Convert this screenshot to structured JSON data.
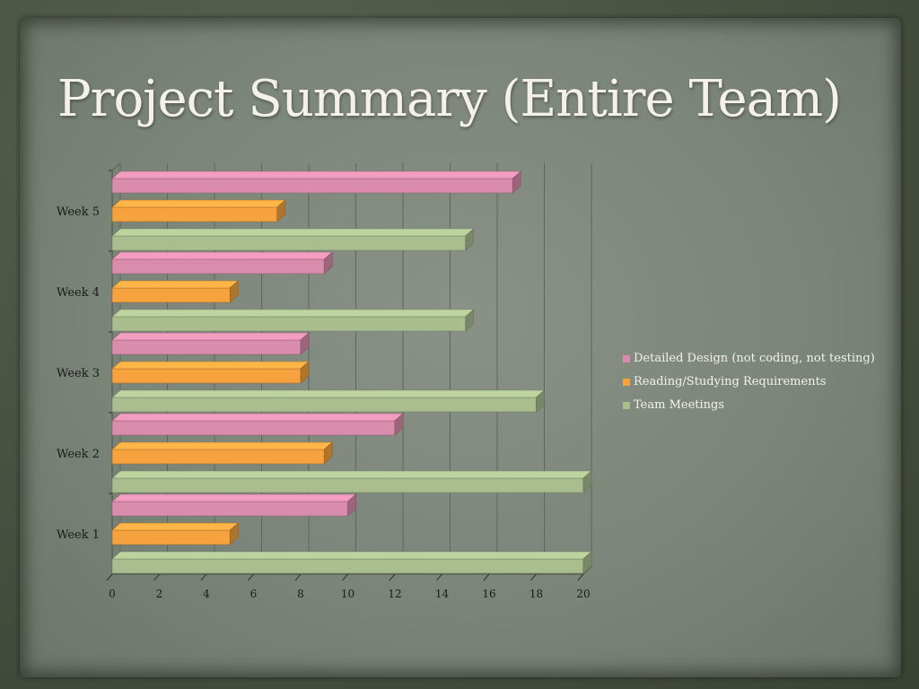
{
  "slide": {
    "title": "Project Summary (Entire Team)"
  },
  "chart_data": {
    "type": "bar",
    "orientation": "horizontal",
    "style": "3d",
    "categories": [
      "Week 1",
      "Week 2",
      "Week 3",
      "Week 4",
      "Week 5"
    ],
    "series": [
      {
        "name": "Detailed Design (not coding, not testing)",
        "color": "#d98cab",
        "values": [
          10,
          12,
          8,
          9,
          17
        ]
      },
      {
        "name": "Reading/Studying Requirements",
        "color": "#f5a23f",
        "values": [
          5,
          9,
          8,
          5,
          7
        ]
      },
      {
        "name": "Team Meetings",
        "color": "#a9bd8f",
        "values": [
          20,
          20,
          18,
          15,
          15
        ]
      }
    ],
    "xlim": [
      0,
      20
    ],
    "xticks": [
      "0",
      "2",
      "4",
      "6",
      "8",
      "10",
      "12",
      "14",
      "16",
      "18",
      "20"
    ],
    "grid": true,
    "legend": "right"
  }
}
